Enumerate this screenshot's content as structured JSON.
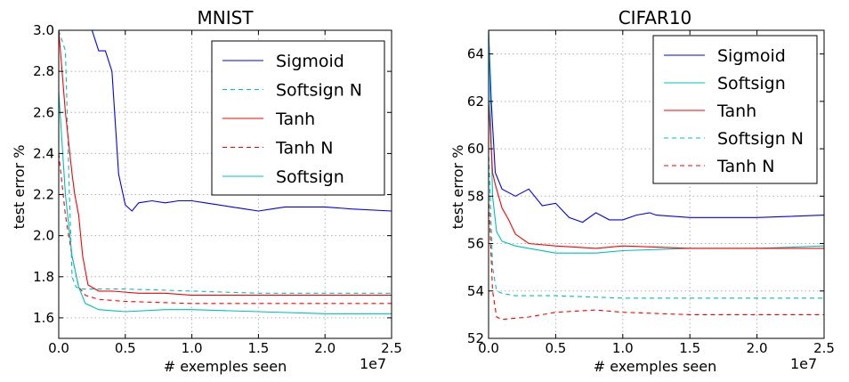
{
  "chart_data": [
    {
      "type": "line",
      "title": "MNIST",
      "xlabel": "# exemples seen",
      "ylabel": "test error %",
      "x_exponent_label": "1e7",
      "xlim": [
        0,
        2.5
      ],
      "ylim": [
        1.5,
        3.0
      ],
      "xticks": [
        0.0,
        0.5,
        1.0,
        1.5,
        2.0,
        2.5
      ],
      "xtick_labels": [
        "0.0",
        "0.5",
        "1.0",
        "1.5",
        "2.0",
        "2.5"
      ],
      "yticks": [
        1.6,
        1.8,
        2.0,
        2.2,
        2.4,
        2.6,
        2.8,
        3.0
      ],
      "ytick_labels": [
        "1.6",
        "1.8",
        "2.0",
        "2.2",
        "2.4",
        "2.6",
        "2.8",
        "3.0"
      ],
      "grid": true,
      "legend_position": "top-right",
      "legend_order": [
        "Sigmoid",
        "Softsign N",
        "Tanh",
        "Tanh N",
        "Softsign"
      ],
      "series": [
        {
          "name": "Sigmoid",
          "color": "#0000ff",
          "dash": "solid",
          "x": [
            0.0,
            0.18,
            0.25,
            0.3,
            0.35,
            0.4,
            0.45,
            0.5,
            0.55,
            0.6,
            0.7,
            0.8,
            0.9,
            1.0,
            1.1,
            1.2,
            1.3,
            1.4,
            1.5,
            1.6,
            1.7,
            1.8,
            1.9,
            2.0,
            2.2,
            2.5
          ],
          "y": [
            3.0,
            3.0,
            3.0,
            2.9,
            2.9,
            2.8,
            2.3,
            2.15,
            2.12,
            2.16,
            2.17,
            2.16,
            2.17,
            2.17,
            2.16,
            2.15,
            2.14,
            2.13,
            2.12,
            2.13,
            2.14,
            2.14,
            2.14,
            2.14,
            2.13,
            2.12
          ]
        },
        {
          "name": "Softsign N",
          "color": "#00bfbf",
          "dash": "dashed",
          "x": [
            0.0,
            0.05,
            0.08,
            0.1,
            0.13,
            0.17,
            0.25,
            0.5,
            1.0,
            1.5,
            2.0,
            2.5
          ],
          "y": [
            3.0,
            2.9,
            2.2,
            1.8,
            1.75,
            1.74,
            1.74,
            1.74,
            1.73,
            1.72,
            1.72,
            1.72
          ]
        },
        {
          "name": "Tanh",
          "color": "#ff0000",
          "dash": "solid",
          "x": [
            0.0,
            0.05,
            0.1,
            0.12,
            0.15,
            0.18,
            0.22,
            0.3,
            0.4,
            0.6,
            0.8,
            1.0,
            1.5,
            2.0,
            2.5
          ],
          "y": [
            3.0,
            2.6,
            2.3,
            2.2,
            2.1,
            1.9,
            1.76,
            1.73,
            1.73,
            1.72,
            1.72,
            1.71,
            1.71,
            1.71,
            1.71
          ]
        },
        {
          "name": "Tanh N",
          "color": "#ff0000",
          "dash": "dashed",
          "x": [
            0.0,
            0.05,
            0.1,
            0.15,
            0.2,
            0.3,
            0.5,
            1.0,
            1.5,
            2.0,
            2.5
          ],
          "y": [
            2.4,
            2.1,
            1.9,
            1.75,
            1.71,
            1.69,
            1.68,
            1.67,
            1.67,
            1.67,
            1.67
          ]
        },
        {
          "name": "Softsign",
          "color": "#00bfbf",
          "dash": "solid",
          "x": [
            0.0,
            0.05,
            0.1,
            0.15,
            0.2,
            0.3,
            0.5,
            0.8,
            1.0,
            1.5,
            2.0,
            2.5
          ],
          "y": [
            2.7,
            2.2,
            1.9,
            1.75,
            1.67,
            1.64,
            1.63,
            1.64,
            1.64,
            1.63,
            1.62,
            1.62
          ]
        }
      ]
    },
    {
      "type": "line",
      "title": "CIFAR10",
      "xlabel": "# exemples seen",
      "ylabel": "test error %",
      "x_exponent_label": "1e7",
      "xlim": [
        0,
        2.5
      ],
      "ylim": [
        52,
        65
      ],
      "xticks": [
        0.0,
        0.5,
        1.0,
        1.5,
        2.0,
        2.5
      ],
      "xtick_labels": [
        "0.0",
        "0.5",
        "1.0",
        "1.5",
        "2.0",
        "2.5"
      ],
      "yticks": [
        52,
        54,
        56,
        58,
        60,
        62,
        64
      ],
      "ytick_labels": [
        "52",
        "54",
        "56",
        "58",
        "60",
        "62",
        "64"
      ],
      "grid": true,
      "legend_position": "top-right",
      "legend_order": [
        "Sigmoid",
        "Softsign",
        "Tanh",
        "Softsign N",
        "Tanh N"
      ],
      "series": [
        {
          "name": "Sigmoid",
          "color": "#0000ff",
          "dash": "solid",
          "x": [
            0.0,
            0.02,
            0.05,
            0.1,
            0.2,
            0.3,
            0.4,
            0.5,
            0.6,
            0.7,
            0.8,
            0.9,
            1.0,
            1.1,
            1.2,
            1.25,
            1.5,
            2.0,
            2.5
          ],
          "y": [
            65.0,
            62.0,
            59.0,
            58.3,
            58.0,
            58.3,
            57.6,
            57.7,
            57.1,
            56.9,
            57.3,
            57.0,
            57.0,
            57.2,
            57.3,
            57.2,
            57.1,
            57.1,
            57.2
          ]
        },
        {
          "name": "Softsign",
          "color": "#00bfbf",
          "dash": "solid",
          "x": [
            0.0,
            0.03,
            0.06,
            0.1,
            0.2,
            0.3,
            0.5,
            0.8,
            1.0,
            1.5,
            2.0,
            2.5
          ],
          "y": [
            65.0,
            58.0,
            56.5,
            56.1,
            55.9,
            55.8,
            55.6,
            55.6,
            55.7,
            55.8,
            55.8,
            55.9
          ]
        },
        {
          "name": "Tanh",
          "color": "#ff0000",
          "dash": "solid",
          "x": [
            0.0,
            0.03,
            0.05,
            0.1,
            0.15,
            0.2,
            0.3,
            0.5,
            0.8,
            1.0,
            1.5,
            2.0,
            2.5
          ],
          "y": [
            62.0,
            59.0,
            58.5,
            57.5,
            57.0,
            56.4,
            56.0,
            55.9,
            55.8,
            55.9,
            55.8,
            55.8,
            55.8
          ]
        },
        {
          "name": "Softsign N",
          "color": "#00bfbf",
          "dash": "dashed",
          "x": [
            0.0,
            0.03,
            0.06,
            0.1,
            0.2,
            0.5,
            1.0,
            1.5,
            2.0,
            2.5
          ],
          "y": [
            60.0,
            55.0,
            54.0,
            53.9,
            53.8,
            53.8,
            53.7,
            53.7,
            53.7,
            53.7
          ]
        },
        {
          "name": "Tanh N",
          "color": "#ff0000",
          "dash": "dashed",
          "x": [
            0.0,
            0.03,
            0.06,
            0.1,
            0.3,
            0.5,
            0.8,
            1.0,
            1.5,
            2.0,
            2.5
          ],
          "y": [
            58.0,
            54.0,
            52.9,
            52.8,
            52.9,
            53.1,
            53.2,
            53.1,
            53.0,
            53.0,
            53.0
          ]
        }
      ]
    }
  ]
}
